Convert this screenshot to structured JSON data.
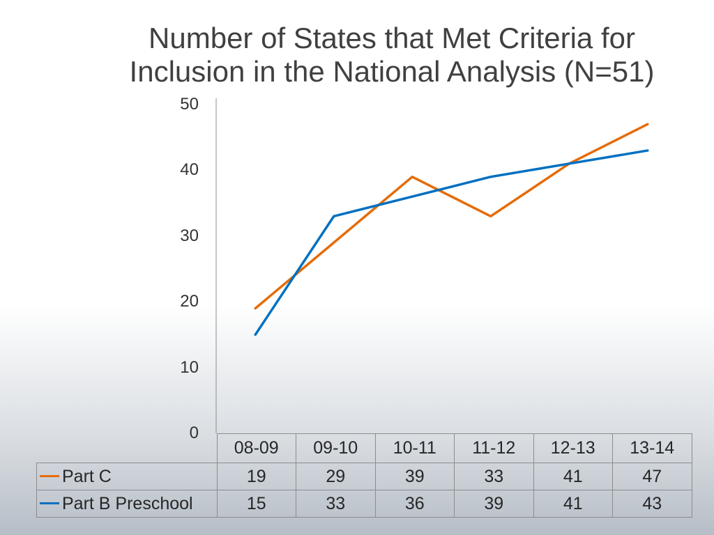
{
  "chart_data": {
    "type": "line",
    "title": "Number of States that Met Criteria for Inclusion in the National Analysis (N=51)",
    "categories": [
      "08-09",
      "09-10",
      "10-11",
      "11-12",
      "12-13",
      "13-14"
    ],
    "series": [
      {
        "name": "Part C",
        "values": [
          19,
          29,
          39,
          33,
          41,
          47
        ],
        "color": "#E46C0A"
      },
      {
        "name": "Part B Preschool",
        "values": [
          15,
          33,
          36,
          39,
          41,
          43
        ],
        "color": "#0070C0"
      }
    ],
    "ylim": [
      0,
      50
    ],
    "yticks": [
      0,
      10,
      20,
      30,
      40,
      50
    ],
    "grid": false,
    "legend": "bottom-left",
    "data_table": true
  }
}
